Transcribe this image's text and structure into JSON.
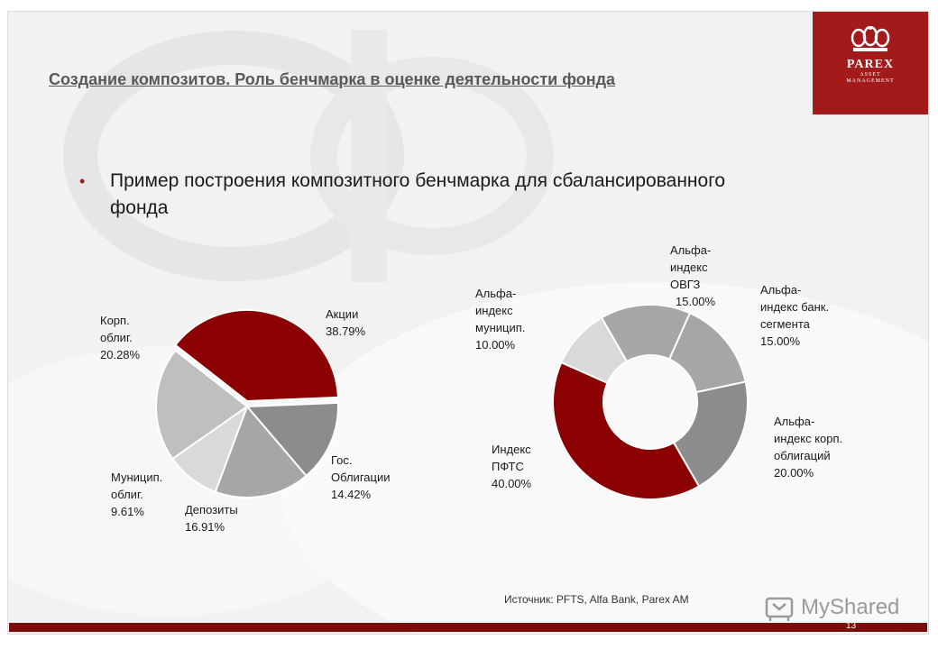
{
  "slide": {
    "title": "Создание композитов. Роль бенчмарка в оценке деятельности фонда",
    "bullet_symbol": "•",
    "bullet_line1": "Пример построения композитного бенчмарка для сбалансированного",
    "bullet_line2": "фонда",
    "source": "Источник: PFTS, Alfa Bank, Parex AM",
    "page_number": "13"
  },
  "logo": {
    "name": "PAREX",
    "sub1": "ASSET",
    "sub2": "MANAGEMENT",
    "color": "#a31a1a"
  },
  "watermark": {
    "brand": "MyShared"
  },
  "colors": {
    "dark_red": "#8b0000",
    "gray_dark": "#8c8c8c",
    "gray_mid": "#a6a6a6",
    "gray_light": "#d9d9d9",
    "gray_medium_light": "#bfbfbf",
    "bottom_bar": "#7b0d0d"
  },
  "chart_data": [
    {
      "type": "pie",
      "title": "",
      "slices": [
        {
          "name": "Акции",
          "label_line1": "Акции",
          "label_value": "38.79%",
          "value": 38.79,
          "color": "#8b0000"
        },
        {
          "name": "Гос. Облигации",
          "label_line1": "Гос.",
          "label_line2": "Облигации",
          "label_value": "14.42%",
          "value": 14.42,
          "color": "#8c8c8c"
        },
        {
          "name": "Депозиты",
          "label_line1": "Депозиты",
          "label_value": "16.91%",
          "value": 16.91,
          "color": "#a6a6a6"
        },
        {
          "name": "Муницип. облиг.",
          "label_line1": "Муницип.",
          "label_line2": "облиг.",
          "label_value": "9.61%",
          "value": 9.61,
          "color": "#d9d9d9"
        },
        {
          "name": "Корп. облиг.",
          "label_line1": "Корп.",
          "label_line2": "облиг.",
          "label_value": "20.28%",
          "value": 20.28,
          "color": "#bfbfbf"
        }
      ]
    },
    {
      "type": "pie",
      "title": "",
      "donut": true,
      "slices": [
        {
          "name": "Альфа-индекс ОВГЗ",
          "label_line1": "Альфа-",
          "label_line2": "индекс",
          "label_line3": "ОВГЗ",
          "label_value": "15.00%",
          "value": 15.0,
          "color": "#a6a6a6"
        },
        {
          "name": "Альфа-индекс банк. сегмента",
          "label_line1": "Альфа-",
          "label_line2": "индекс банк.",
          "label_line3": "сегмента",
          "label_value": "15.00%",
          "value": 15.0,
          "color": "#a6a6a6"
        },
        {
          "name": "Альфа-индекс корп. облигаций",
          "label_line1": "Альфа-",
          "label_line2": "индекс корп.",
          "label_line3": "облигаций",
          "label_value": "20.00%",
          "value": 20.0,
          "color": "#8c8c8c"
        },
        {
          "name": "Индекс ПФТС",
          "label_line1": "Индекс",
          "label_line2": "ПФТС",
          "label_value": "40.00%",
          "value": 40.0,
          "color": "#8b0000"
        },
        {
          "name": "Альфа-индекс муницип.",
          "label_line1": "Альфа-",
          "label_line2": "индекс",
          "label_line3": "муницип.",
          "label_value": "10.00%",
          "value": 10.0,
          "color": "#d9d9d9"
        }
      ]
    }
  ]
}
